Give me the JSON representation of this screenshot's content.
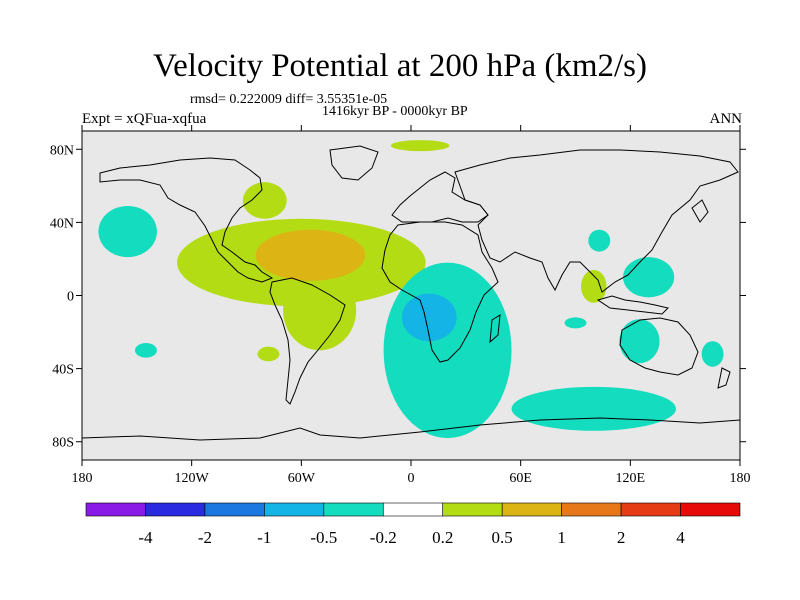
{
  "chart_data": {
    "type": "heatmap",
    "title": "Velocity Potential at 200 hPa (km2/s)",
    "stats_text": "rmsd= 0.222009 diff= 3.55351e-05",
    "period_text": "1416kyr BP - 0000kyr BP",
    "left_label": "Expt = xQFua-xqfua",
    "right_label": "ANN",
    "x_ticks": [
      "180",
      "120W",
      "60W",
      "0",
      "60E",
      "120E",
      "180"
    ],
    "y_ticks": [
      "80N",
      "40N",
      "0",
      "40S",
      "80S"
    ],
    "xlim": [
      -180,
      180
    ],
    "ylim": [
      -90,
      90
    ],
    "colorbar": {
      "levels": [
        "-4",
        "-2",
        "-1",
        "-0.5",
        "-0.2",
        "0.2",
        "0.5",
        "1",
        "2",
        "4"
      ],
      "colors": [
        "#8a1ae6",
        "#2a2ae0",
        "#1a78e0",
        "#14b4e6",
        "#14dcbe",
        "#ffffff",
        "#b4dc14",
        "#dcb414",
        "#e6781a",
        "#e63c14",
        "#e60a0a"
      ]
    },
    "regions": [
      {
        "level": "0.2 to 0.5",
        "lon": -60,
        "lat": 18,
        "rx": 68,
        "ry": 24,
        "color": "#b4dc14"
      },
      {
        "level": "0.2 to 0.5",
        "lon": -50,
        "lat": -8,
        "rx": 20,
        "ry": 22,
        "color": "#b4dc14"
      },
      {
        "level": "0.2 to 0.5",
        "lon": -80,
        "lat": 52,
        "rx": 12,
        "ry": 10,
        "color": "#b4dc14"
      },
      {
        "level": "0.2 to 0.5",
        "lon": 5,
        "lat": 82,
        "rx": 16,
        "ry": 3,
        "color": "#b4dc14"
      },
      {
        "level": "0.2 to 0.5",
        "lon": -78,
        "lat": -32,
        "rx": 6,
        "ry": 4,
        "color": "#b4dc14"
      },
      {
        "level": "0.2 to 0.5",
        "lon": 100,
        "lat": 5,
        "rx": 7,
        "ry": 9,
        "color": "#b4dc14"
      },
      {
        "level": "0.5 to 1",
        "lon": -55,
        "lat": 22,
        "rx": 30,
        "ry": 14,
        "color": "#dcb414"
      },
      {
        "level": "-0.5 to -0.2",
        "lon": 20,
        "lat": -30,
        "rx": 35,
        "ry": 48,
        "color": "#14dcbe"
      },
      {
        "level": "-0.5 to -0.2",
        "lon": 100,
        "lat": -62,
        "rx": 45,
        "ry": 12,
        "color": "#14dcbe"
      },
      {
        "level": "-0.5 to -0.2",
        "lon": -155,
        "lat": 35,
        "rx": 16,
        "ry": 14,
        "color": "#14dcbe"
      },
      {
        "level": "-0.5 to -0.2",
        "lon": 130,
        "lat": 10,
        "rx": 14,
        "ry": 11,
        "color": "#14dcbe"
      },
      {
        "level": "-0.5 to -0.2",
        "lon": 125,
        "lat": -25,
        "rx": 11,
        "ry": 12,
        "color": "#14dcbe"
      },
      {
        "level": "-0.5 to -0.2",
        "lon": 103,
        "lat": 30,
        "rx": 6,
        "ry": 6,
        "color": "#14dcbe"
      },
      {
        "level": "-0.5 to -0.2",
        "lon": 165,
        "lat": -32,
        "rx": 6,
        "ry": 7,
        "color": "#14dcbe"
      },
      {
        "level": "-0.5 to -0.2",
        "lon": -145,
        "lat": -30,
        "rx": 6,
        "ry": 4,
        "color": "#14dcbe"
      },
      {
        "level": "-0.5 to -0.2",
        "lon": 90,
        "lat": -15,
        "rx": 6,
        "ry": 3,
        "color": "#14dcbe"
      },
      {
        "level": "-1 to -0.5",
        "lon": 10,
        "lat": -12,
        "rx": 15,
        "ry": 13,
        "color": "#14b4e6"
      }
    ]
  }
}
